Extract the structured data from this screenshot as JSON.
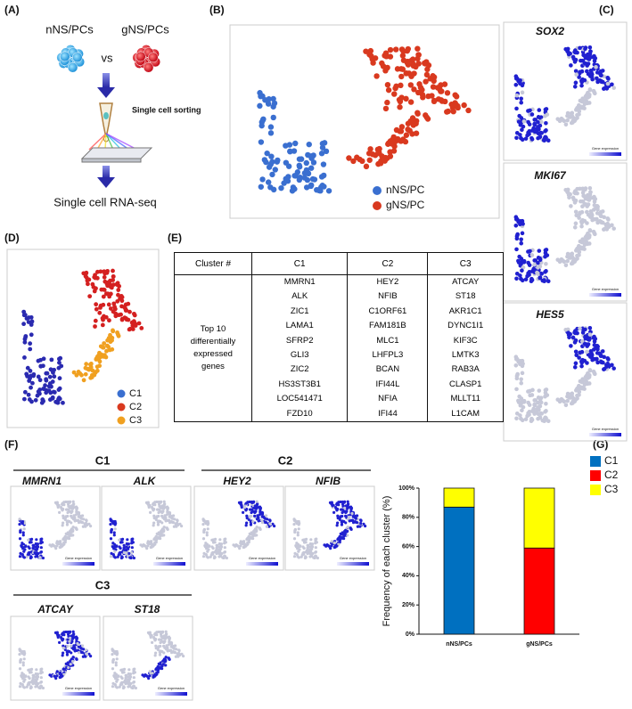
{
  "panels": {
    "A": "(A)",
    "B": "(B)",
    "C": "(C)",
    "D": "(D)",
    "E": "(E)",
    "F": "(F)",
    "G": "(G)"
  },
  "panel_a": {
    "group1": "nNS/PCs",
    "vs": "vs",
    "group2": "gNS/PCs",
    "step1": "Single cell sorting",
    "step2": "Single cell RNA-seq"
  },
  "panel_b": {
    "legend": [
      "nNS/PC",
      "gNS/PC"
    ]
  },
  "panel_c": {
    "genes": [
      "SOX2",
      "MKI67",
      "HES5"
    ],
    "scale_label": "Gene expression"
  },
  "panel_d": {
    "legend": [
      "C1",
      "C2",
      "C3"
    ]
  },
  "panel_e": {
    "header": [
      "Cluster #",
      "C1",
      "C2",
      "C3"
    ],
    "row_label": "Top 10 differentially expressed genes",
    "genes": [
      [
        "MMRN1",
        "ALK",
        "ZIC1",
        "LAMA1",
        "SFRP2",
        "GLI3",
        "ZIC2",
        "HS3ST3B1",
        "LOC541471",
        "FZD10"
      ],
      [
        "HEY2",
        "NFIB",
        "C1ORF61",
        "FAM181B",
        "MLC1",
        "LHFPL3",
        "BCAN",
        "IFI44L",
        "NFIA",
        "IFI44"
      ],
      [
        "ATCAY",
        "ST18",
        "AKR1C1",
        "DYNC1I1",
        "KIF3C",
        "LMTK3",
        "RAB3A",
        "CLASP1",
        "MLLT11",
        "L1CAM"
      ]
    ]
  },
  "panel_f": {
    "groups": [
      {
        "title": "C1",
        "genes": [
          "MMRN1",
          "ALK"
        ]
      },
      {
        "title": "C2",
        "genes": [
          "HEY2",
          "NFIB"
        ]
      },
      {
        "title": "C3",
        "genes": [
          "ATCAY",
          "ST18"
        ]
      }
    ]
  },
  "chart_data": {
    "type": "stacked_bar",
    "y_label": "Frequency of each cluster (%)",
    "categories": [
      "nNS/PCs",
      "gNS/PCs"
    ],
    "series": [
      {
        "name": "C1",
        "color": "#0070c0",
        "values": [
          87,
          0
        ]
      },
      {
        "name": "C2",
        "color": "#ff0000",
        "values": [
          0,
          59
        ]
      },
      {
        "name": "C3",
        "color": "#ffff00",
        "values": [
          13,
          41
        ]
      }
    ],
    "ylim": [
      0,
      100
    ],
    "yticks": [
      {
        "value": 0,
        "label": "0%"
      },
      {
        "value": 20,
        "label": "20%"
      },
      {
        "value": 40,
        "label": "40%"
      },
      {
        "value": 60,
        "label": "60%"
      },
      {
        "value": 80,
        "label": "80%"
      },
      {
        "value": 100,
        "label": "100%"
      }
    ],
    "legend": "right"
  }
}
